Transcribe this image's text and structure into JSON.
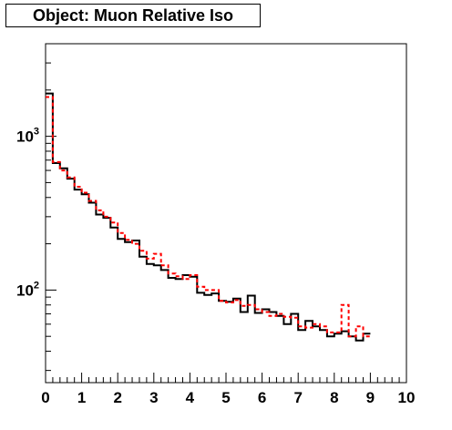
{
  "title": "Object: Muon Relative Iso",
  "chart_data": {
    "type": "line",
    "title": "Object: Muon Relative Iso",
    "xlabel": "",
    "ylabel": "",
    "xlim": [
      0,
      10
    ],
    "ylim": [
      25,
      4000
    ],
    "yscale": "log",
    "grid": false,
    "x_ticks": [
      "0",
      "1",
      "2",
      "3",
      "4",
      "5",
      "6",
      "7",
      "8",
      "9",
      "10"
    ],
    "y_ticks": [
      {
        "base": "10",
        "exp": "2",
        "value": 100
      },
      {
        "base": "10",
        "exp": "3",
        "value": 1000
      }
    ],
    "bin_width": 0.2,
    "series": [
      {
        "style": "step-solid",
        "color": "#000000",
        "values": [
          1900,
          670,
          620,
          530,
          450,
          420,
          370,
          310,
          295,
          255,
          215,
          205,
          210,
          165,
          148,
          145,
          135,
          120,
          118,
          125,
          122,
          96,
          93,
          95,
          85,
          84,
          88,
          72,
          92,
          71,
          75,
          72,
          68,
          60,
          70,
          55,
          63,
          58,
          55,
          50,
          52,
          54,
          50,
          47,
          52
        ]
      },
      {
        "style": "step-dashed",
        "color": "#ff0000",
        "values": [
          1800,
          680,
          600,
          540,
          470,
          430,
          380,
          330,
          300,
          275,
          235,
          212,
          200,
          180,
          160,
          172,
          145,
          128,
          123,
          118,
          125,
          105,
          100,
          100,
          85,
          83,
          86,
          79,
          80,
          75,
          72,
          68,
          70,
          67,
          66,
          58,
          57,
          60,
          58,
          53,
          53,
          80,
          50,
          58,
          50
        ]
      }
    ]
  }
}
